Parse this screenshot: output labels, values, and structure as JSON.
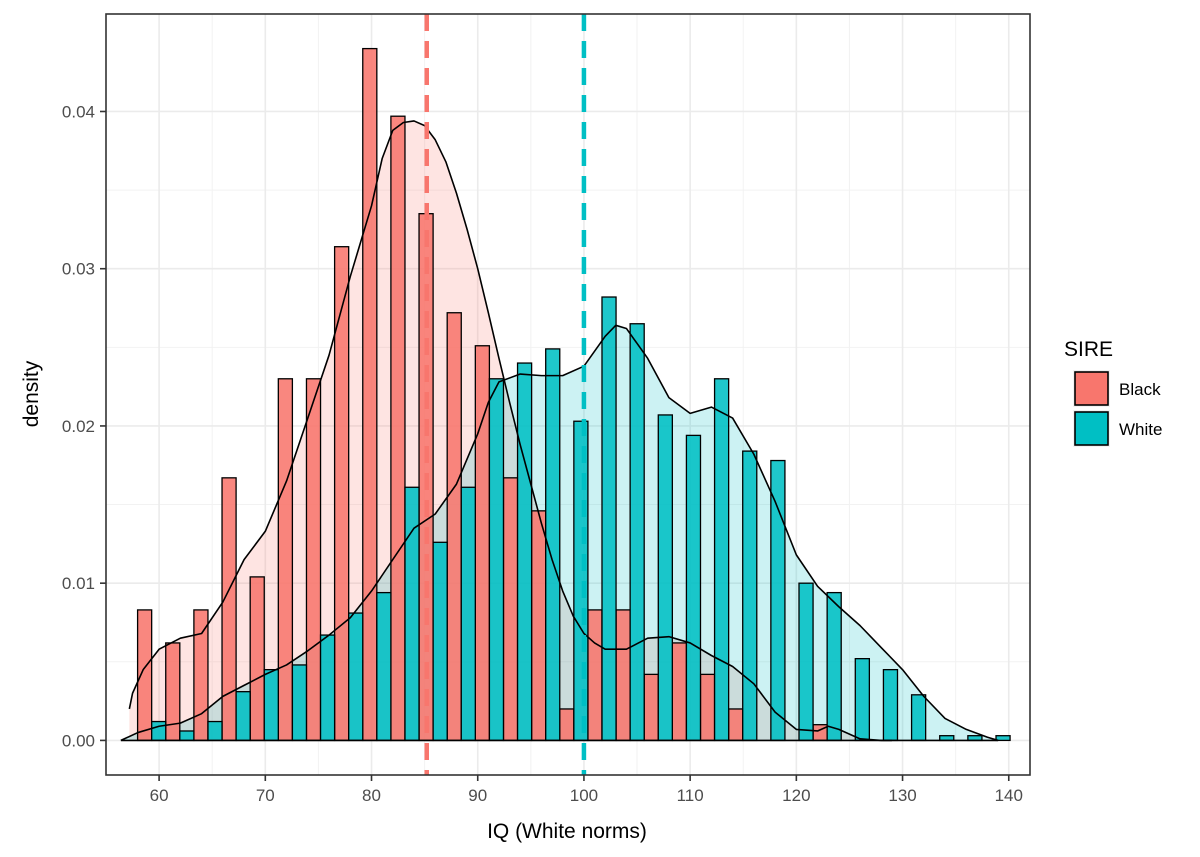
{
  "chart_data": {
    "type": "bar",
    "subtype": "overlaid density histogram with kernel density curves",
    "xlabel": "IQ (White norms)",
    "ylabel": "density",
    "xlim": [
      55,
      142
    ],
    "ylim": [
      -0.0022,
      0.0462
    ],
    "x_ticks": [
      60,
      70,
      80,
      90,
      100,
      110,
      120,
      130,
      140
    ],
    "x_tick_labels": [
      "60",
      "70",
      "80",
      "90",
      "100",
      "110",
      "120",
      "130",
      "140"
    ],
    "y_ticks": [
      0,
      0.01,
      0.02,
      0.03,
      0.04
    ],
    "y_tick_labels": [
      "0.00",
      "0.01",
      "0.02",
      "0.03",
      "0.04"
    ],
    "grid": true,
    "legend": {
      "title": "SIRE",
      "position": "right",
      "entries": [
        {
          "name": "Black",
          "color": "#F8766D"
        },
        {
          "name": "White",
          "color": "#00BFC4"
        }
      ]
    },
    "bin_width": 2.65,
    "bin_centers": [
      59.3,
      61.95,
      64.6,
      67.25,
      69.9,
      72.55,
      75.2,
      77.85,
      80.5,
      83.15,
      85.8,
      88.45,
      91.1,
      93.75,
      96.4,
      99.05,
      101.7,
      104.35,
      107.0,
      109.65,
      112.3,
      114.95,
      117.6,
      120.25,
      122.9,
      125.55,
      128.2,
      130.85,
      133.5,
      136.15,
      138.8
    ],
    "series": [
      {
        "name": "Black",
        "color": "#F8766D",
        "mean": 85.2,
        "values": [
          0.0083,
          0.0062,
          0.0083,
          0.0167,
          0.0104,
          0.023,
          0.023,
          0.0314,
          0.044,
          0.0397,
          0.0335,
          0.0272,
          0.0251,
          0.0167,
          0.0146,
          0.002,
          0.0083,
          0.0083,
          0.0042,
          0.0062,
          0.0042,
          0.002,
          0,
          0,
          0.001,
          0,
          0,
          0,
          0,
          0,
          0
        ],
        "density_x": [
          57.2,
          57.5,
          58.5,
          60,
          62,
          64,
          66,
          68,
          70,
          72,
          74,
          76,
          78,
          80,
          81,
          82,
          83,
          84,
          85,
          86,
          87,
          88,
          89,
          90,
          91,
          92,
          93,
          94,
          95,
          96,
          97,
          98,
          99,
          100,
          101,
          102,
          104,
          106,
          108,
          110,
          112,
          114,
          116,
          118,
          120,
          122,
          123,
          124,
          126,
          128,
          129
        ],
        "density_y": [
          0.002,
          0.003,
          0.0045,
          0.0058,
          0.0065,
          0.0068,
          0.0088,
          0.0115,
          0.0133,
          0.0165,
          0.0205,
          0.0245,
          0.0295,
          0.034,
          0.037,
          0.0388,
          0.0393,
          0.0394,
          0.0391,
          0.0382,
          0.0368,
          0.0348,
          0.0325,
          0.03,
          0.0272,
          0.0243,
          0.0215,
          0.0188,
          0.0163,
          0.0138,
          0.0115,
          0.0095,
          0.0079,
          0.0068,
          0.0062,
          0.0058,
          0.0058,
          0.0065,
          0.0066,
          0.0062,
          0.0054,
          0.0047,
          0.0036,
          0.0018,
          0.0007,
          0.0006,
          0.0009,
          0.0007,
          0.0001,
          0,
          0
        ]
      },
      {
        "name": "White",
        "color": "#00BFC4",
        "mean": 100,
        "values": [
          0.0012,
          0.0006,
          0.0012,
          0.0031,
          0.0045,
          0.0048,
          0.0067,
          0.0081,
          0.0094,
          0.0161,
          0.0126,
          0.0161,
          0.023,
          0.024,
          0.0249,
          0.0203,
          0.0282,
          0.0265,
          0.0207,
          0.0194,
          0.023,
          0.0184,
          0.0178,
          0.01,
          0.0094,
          0.0052,
          0.0045,
          0.0029,
          0.0003,
          0.0003,
          0.0003
        ],
        "density_x": [
          56.4,
          58,
          60,
          62,
          64,
          66,
          68,
          70,
          72,
          74,
          76,
          78,
          80,
          82,
          84,
          86,
          88,
          90,
          91,
          92,
          94,
          96,
          98,
          100,
          102,
          103,
          104,
          106,
          108,
          110,
          111,
          112,
          114,
          116,
          118,
          120,
          122,
          124,
          126,
          128,
          130,
          132,
          134,
          136,
          138,
          139
        ],
        "density_y": [
          0,
          0.0005,
          0.0009,
          0.0011,
          0.0017,
          0.0028,
          0.0035,
          0.0042,
          0.0048,
          0.0057,
          0.0067,
          0.0078,
          0.0095,
          0.0115,
          0.0135,
          0.0144,
          0.0163,
          0.0195,
          0.0215,
          0.0228,
          0.0233,
          0.0232,
          0.0232,
          0.0238,
          0.0257,
          0.0264,
          0.0262,
          0.0243,
          0.0218,
          0.0208,
          0.021,
          0.0212,
          0.0205,
          0.0182,
          0.0152,
          0.0118,
          0.0098,
          0.0085,
          0.0073,
          0.0059,
          0.0045,
          0.0028,
          0.0014,
          0.0007,
          0.0002,
          0
        ]
      }
    ]
  }
}
